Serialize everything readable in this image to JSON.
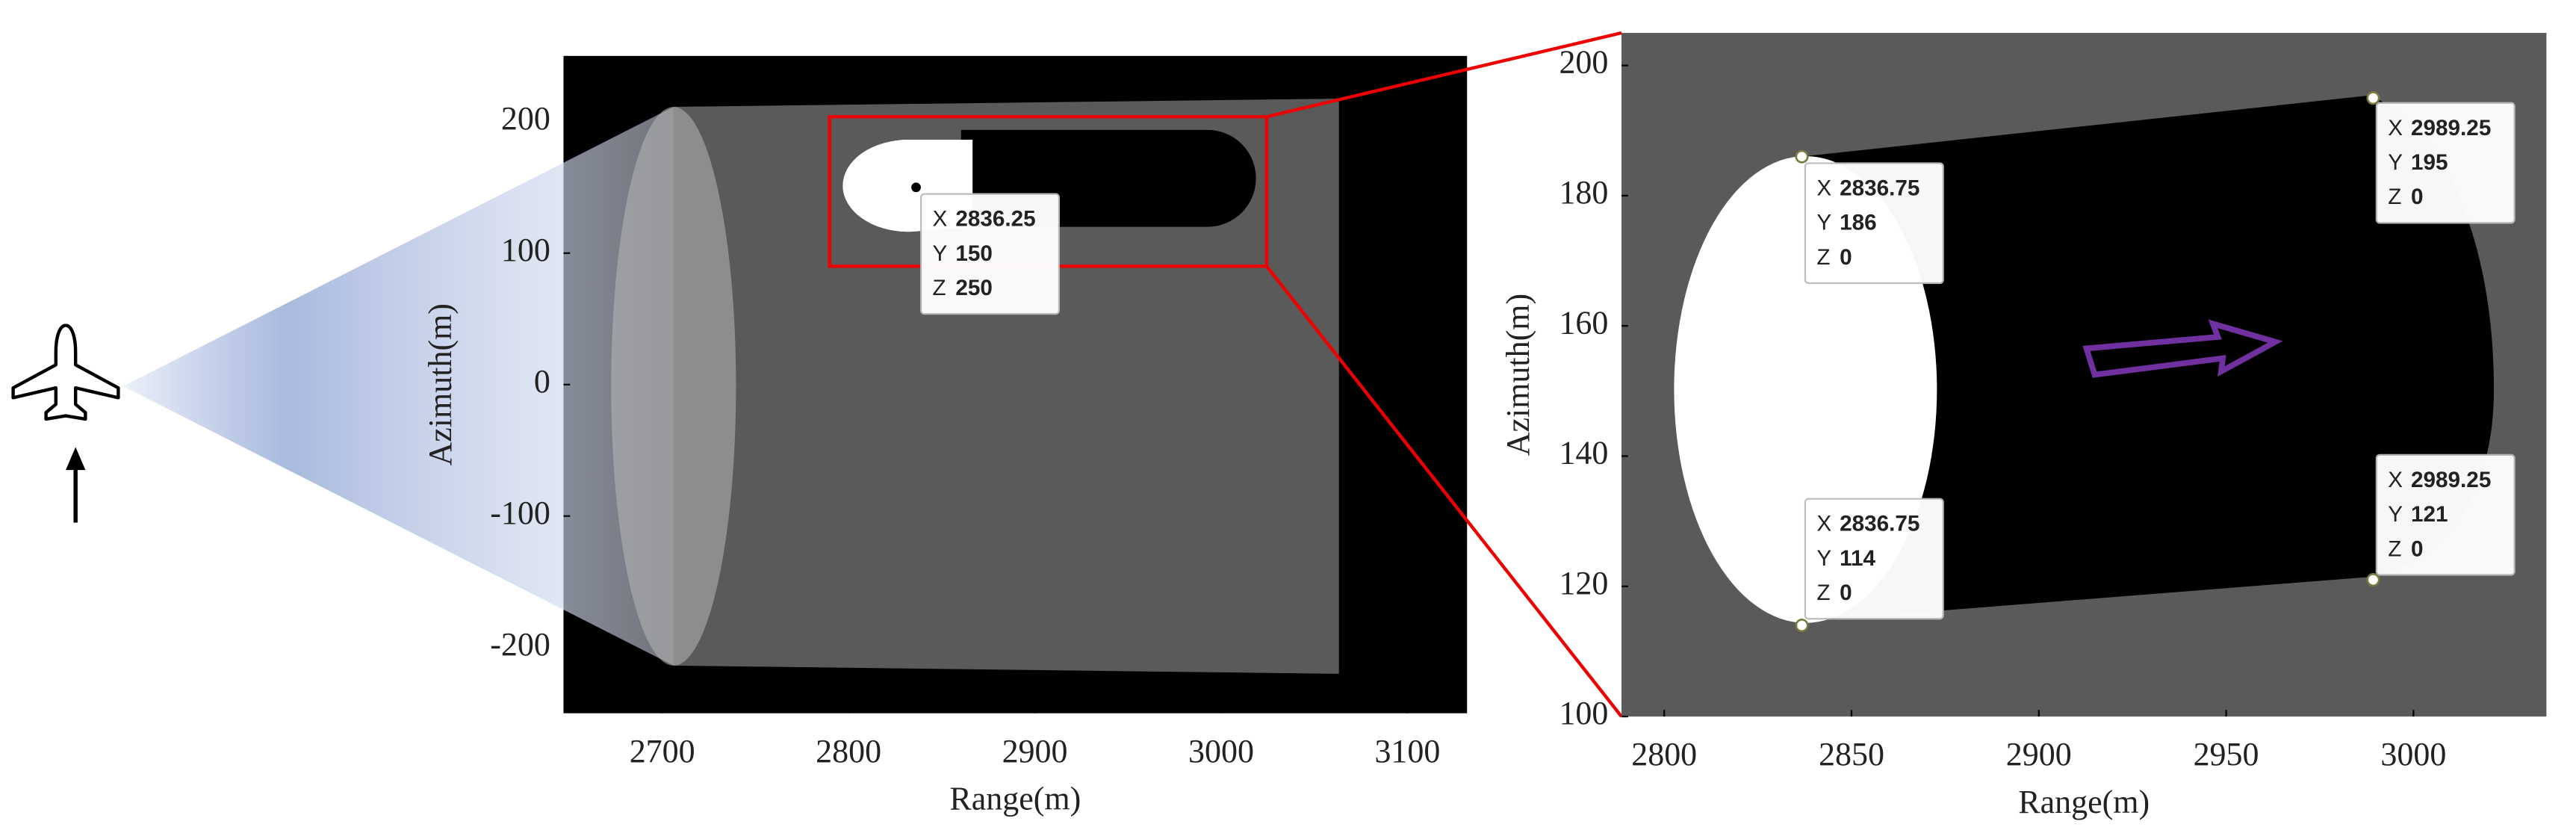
{
  "chart_data": [
    {
      "type": "image",
      "xlabel": "Range(m)",
      "ylabel": "Azimuth(m)",
      "xlim": [
        2647,
        3132
      ],
      "ylim": [
        -250,
        250
      ],
      "xticks": [
        2700,
        2800,
        2900,
        3000,
        3100
      ],
      "yticks": [
        200,
        100,
        0,
        -100,
        -200
      ],
      "tip_labels": [
        "X",
        "Y",
        "Z"
      ],
      "datatips": [
        {
          "x": 2836.25,
          "y": 150,
          "z": 250
        }
      ]
    },
    {
      "type": "image",
      "xlabel": "Range(m)",
      "ylabel": "Azimuth(m)",
      "xlim": [
        2788.6,
        3035.5
      ],
      "ylim": [
        100,
        205
      ],
      "xticks": [
        2800,
        2850,
        2900,
        2950,
        3000
      ],
      "yticks": [
        200,
        180,
        160,
        140,
        120,
        100
      ],
      "tip_labels": [
        "X",
        "Y",
        "Z"
      ],
      "datatips": [
        {
          "x": 2836.75,
          "y": 186,
          "z": 0
        },
        {
          "x": 2836.75,
          "y": 114,
          "z": 0
        },
        {
          "x": 2989.25,
          "y": 195,
          "z": 0
        },
        {
          "x": 2989.25,
          "y": 121,
          "z": 0
        }
      ]
    }
  ]
}
